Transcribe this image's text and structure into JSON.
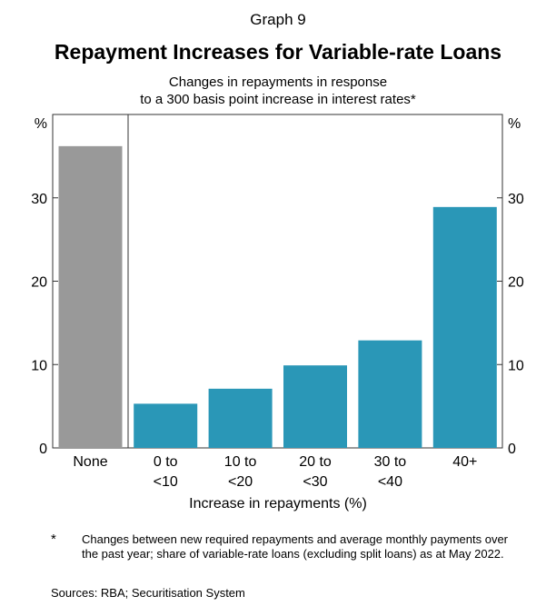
{
  "graph_label": "Graph 9",
  "footnote": {
    "marker": "*",
    "text": "Changes between new required repayments and average monthly payments over the past year; share of variable-rate loans (excluding split loans) as at May 2022."
  },
  "sources": "Sources: RBA; Securitisation System",
  "colors": {
    "none_bar": "#999999",
    "bar": "#2A97B7",
    "axis": "#333333"
  },
  "chart_data": {
    "type": "bar",
    "title": "Repayment Increases for Variable-rate Loans",
    "subtitle_lines": [
      "Changes in repayments in response",
      "to a 300 basis point increase in interest rates*"
    ],
    "xlabel": "Increase in repayments (%)",
    "ylabel_left": "%",
    "ylabel_right": "%",
    "ylim": [
      0,
      40
    ],
    "yticks": [
      0,
      10,
      20,
      30
    ],
    "categories": [
      [
        "None"
      ],
      [
        "0 to",
        "<10"
      ],
      [
        "10 to",
        "<20"
      ],
      [
        "20 to",
        "<30"
      ],
      [
        "30 to",
        "<40"
      ],
      [
        "40+"
      ]
    ],
    "values": [
      36.2,
      5.3,
      7.1,
      9.9,
      12.9,
      28.9
    ]
  }
}
